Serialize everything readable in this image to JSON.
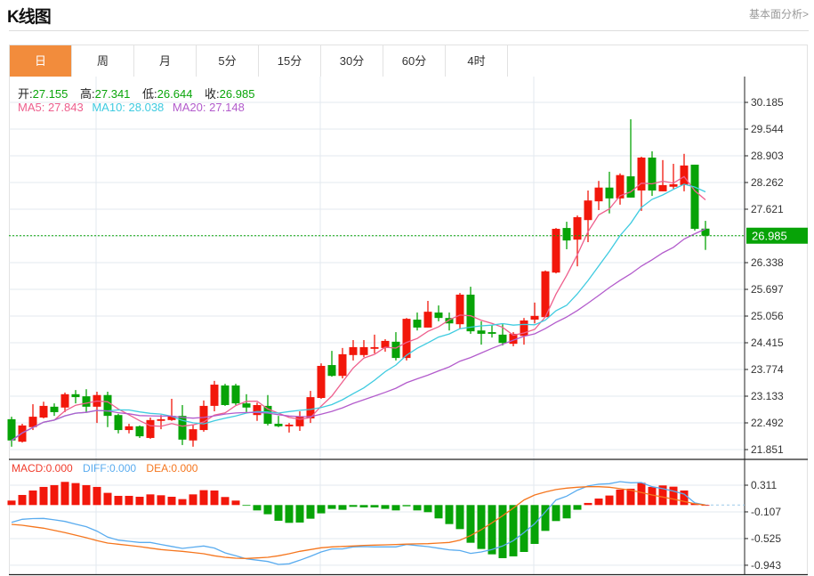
{
  "header": {
    "title": "K线图",
    "link": "基本面分析>"
  },
  "tabs": [
    {
      "label": "日",
      "active": true
    },
    {
      "label": "周"
    },
    {
      "label": "月"
    },
    {
      "label": "5分"
    },
    {
      "label": "15分"
    },
    {
      "label": "30分"
    },
    {
      "label": "60分"
    },
    {
      "label": "4时"
    }
  ],
  "ohlc": {
    "open_label": "开:",
    "open": "27.155",
    "high_label": "高:",
    "high": "27.341",
    "low_label": "低:",
    "low": "26.644",
    "close_label": "收:",
    "close": "26.985"
  },
  "ma": {
    "ma5": "MA5: 27.843",
    "ma10": "MA10: 28.038",
    "ma20": "MA20: 27.148"
  },
  "macd_legend": {
    "macd": "MACD:0.000",
    "diff": "DIFF:0.000",
    "dea": "DEA:0.000"
  },
  "colors": {
    "up": "#f2170b",
    "down": "#07a307",
    "ma5": "#ee5f8d",
    "ma10": "#3fcbe0",
    "ma20": "#b35ccc",
    "diff": "#5aacef",
    "dea": "#f5761e",
    "accent": "#f28c3c",
    "price": "#07a307"
  },
  "chart_data": {
    "type": "candlestick",
    "current_price": "26.985",
    "price_ticks": [
      "30.185",
      "29.544",
      "28.903",
      "28.262",
      "27.621",
      "26.338",
      "25.697",
      "25.056",
      "24.415",
      "23.774",
      "23.133",
      "22.492",
      "21.851"
    ],
    "price_range": [
      21.851,
      30.185
    ],
    "macd_ticks": [
      "0.311",
      "-0.107",
      "-0.525",
      "-0.943"
    ],
    "candles": [
      [
        22.58,
        22.64,
        21.92,
        22.07
      ],
      [
        22.04,
        22.47,
        22.02,
        22.43
      ],
      [
        22.39,
        22.94,
        22.32,
        22.64
      ],
      [
        22.62,
        23.0,
        22.6,
        22.9
      ],
      [
        22.88,
        22.96,
        22.66,
        22.75
      ],
      [
        22.86,
        23.22,
        22.75,
        23.18
      ],
      [
        23.18,
        23.28,
        22.96,
        23.11
      ],
      [
        23.13,
        23.3,
        22.75,
        22.88
      ],
      [
        22.88,
        23.24,
        22.49,
        23.16
      ],
      [
        23.16,
        23.24,
        22.39,
        22.66
      ],
      [
        22.68,
        22.71,
        22.24,
        22.32
      ],
      [
        22.32,
        22.47,
        22.24,
        22.41
      ],
      [
        22.41,
        22.43,
        22.13,
        22.17
      ],
      [
        22.13,
        22.62,
        22.11,
        22.56
      ],
      [
        22.54,
        22.68,
        22.34,
        22.58
      ],
      [
        22.56,
        23.07,
        22.54,
        22.66
      ],
      [
        22.66,
        22.92,
        21.96,
        22.09
      ],
      [
        22.07,
        22.45,
        21.92,
        22.34
      ],
      [
        22.32,
        23.03,
        22.28,
        22.9
      ],
      [
        22.9,
        23.5,
        22.77,
        23.41
      ],
      [
        23.39,
        23.43,
        22.9,
        22.92
      ],
      [
        23.39,
        23.43,
        22.92,
        22.96
      ],
      [
        22.96,
        23.18,
        22.75,
        22.86
      ],
      [
        22.68,
        22.98,
        22.54,
        22.92
      ],
      [
        22.9,
        23.16,
        22.43,
        22.47
      ],
      [
        22.47,
        22.66,
        22.39,
        22.41
      ],
      [
        22.41,
        22.49,
        22.26,
        22.45
      ],
      [
        22.41,
        22.77,
        22.3,
        22.64
      ],
      [
        22.6,
        23.26,
        22.49,
        23.11
      ],
      [
        23.09,
        23.92,
        23.07,
        23.86
      ],
      [
        23.88,
        24.22,
        23.6,
        23.62
      ],
      [
        23.62,
        24.29,
        23.56,
        24.14
      ],
      [
        24.12,
        24.48,
        23.99,
        24.31
      ],
      [
        24.12,
        24.48,
        24.07,
        24.31
      ],
      [
        24.27,
        24.61,
        24.16,
        24.31
      ],
      [
        24.29,
        24.5,
        24.2,
        24.46
      ],
      [
        24.44,
        24.67,
        23.99,
        24.05
      ],
      [
        24.05,
        25.01,
        23.99,
        24.99
      ],
      [
        24.97,
        25.14,
        24.71,
        24.78
      ],
      [
        24.78,
        25.42,
        24.78,
        25.16
      ],
      [
        25.14,
        25.31,
        24.93,
        25.01
      ],
      [
        25.01,
        25.14,
        24.71,
        24.88
      ],
      [
        24.86,
        25.61,
        24.76,
        25.57
      ],
      [
        25.57,
        25.76,
        24.63,
        24.69
      ],
      [
        24.71,
        24.93,
        24.37,
        24.63
      ],
      [
        24.67,
        24.84,
        24.54,
        24.63
      ],
      [
        24.61,
        24.86,
        24.35,
        24.41
      ],
      [
        24.39,
        24.67,
        24.33,
        24.63
      ],
      [
        24.58,
        25.01,
        24.37,
        24.95
      ],
      [
        24.97,
        25.38,
        24.88,
        25.06
      ],
      [
        25.03,
        26.15,
        25.03,
        26.13
      ],
      [
        26.1,
        27.17,
        26.08,
        27.15
      ],
      [
        27.17,
        27.32,
        26.66,
        26.87
      ],
      [
        26.89,
        27.47,
        26.25,
        27.43
      ],
      [
        27.36,
        28.07,
        26.83,
        27.83
      ],
      [
        27.81,
        28.3,
        27.6,
        28.14
      ],
      [
        28.14,
        28.52,
        27.52,
        27.88
      ],
      [
        27.88,
        28.48,
        27.73,
        28.44
      ],
      [
        28.41,
        29.78,
        27.9,
        27.9
      ],
      [
        28.07,
        28.88,
        27.58,
        28.86
      ],
      [
        28.86,
        29.01,
        27.94,
        28.07
      ],
      [
        28.05,
        28.8,
        28.05,
        28.2
      ],
      [
        28.16,
        28.71,
        28.11,
        28.22
      ],
      [
        28.2,
        28.95,
        28.05,
        28.67
      ],
      [
        28.69,
        28.69,
        27.11,
        27.15
      ],
      [
        27.155,
        27.341,
        26.644,
        26.985
      ]
    ],
    "macd_hist": [
      0.07,
      0.158,
      0.228,
      0.284,
      0.312,
      0.363,
      0.344,
      0.312,
      0.284,
      0.191,
      0.144,
      0.144,
      0.13,
      0.167,
      0.153,
      0.13,
      0.093,
      0.167,
      0.233,
      0.228,
      0.126,
      0.07,
      -0.005,
      -0.084,
      -0.144,
      -0.246,
      -0.279,
      -0.274,
      -0.214,
      -0.13,
      -0.06,
      -0.074,
      -0.028,
      -0.037,
      -0.037,
      -0.06,
      -0.084,
      -0.019,
      -0.084,
      -0.112,
      -0.209,
      -0.298,
      -0.377,
      -0.591,
      -0.688,
      -0.772,
      -0.832,
      -0.804,
      -0.735,
      -0.609,
      -0.405,
      -0.251,
      -0.209,
      -0.074,
      0.033,
      0.102,
      0.149,
      0.242,
      0.256,
      0.349,
      0.284,
      0.307,
      0.288,
      0.228,
      0.028,
      0.0
    ],
    "diff": [
      -0.27,
      -0.223,
      -0.212,
      -0.209,
      -0.232,
      -0.256,
      -0.298,
      -0.339,
      -0.409,
      -0.502,
      -0.549,
      -0.568,
      -0.586,
      -0.586,
      -0.618,
      -0.648,
      -0.679,
      -0.66,
      -0.642,
      -0.674,
      -0.749,
      -0.795,
      -0.842,
      -0.863,
      -0.884,
      -0.93,
      -0.921,
      -0.865,
      -0.804,
      -0.735,
      -0.688,
      -0.688,
      -0.656,
      -0.651,
      -0.656,
      -0.656,
      -0.656,
      -0.618,
      -0.635,
      -0.651,
      -0.677,
      -0.702,
      -0.712,
      -0.758,
      -0.735,
      -0.698,
      -0.642,
      -0.558,
      -0.432,
      -0.293,
      -0.107,
      0.079,
      0.14,
      0.233,
      0.298,
      0.326,
      0.335,
      0.367,
      0.349,
      0.353,
      0.288,
      0.256,
      0.219,
      0.172,
      0.033,
      0.0
    ],
    "dea": [
      -0.302,
      -0.316,
      -0.34,
      -0.363,
      -0.398,
      -0.432,
      -0.472,
      -0.512,
      -0.558,
      -0.595,
      -0.614,
      -0.632,
      -0.651,
      -0.675,
      -0.698,
      -0.712,
      -0.725,
      -0.744,
      -0.763,
      -0.795,
      -0.818,
      -0.832,
      -0.837,
      -0.828,
      -0.818,
      -0.795,
      -0.763,
      -0.725,
      -0.698,
      -0.67,
      -0.656,
      -0.649,
      -0.642,
      -0.632,
      -0.628,
      -0.623,
      -0.618,
      -0.612,
      -0.608,
      -0.605,
      -0.595,
      -0.586,
      -0.549,
      -0.479,
      -0.386,
      -0.279,
      -0.167,
      -0.047,
      0.079,
      0.158,
      0.205,
      0.242,
      0.265,
      0.279,
      0.288,
      0.288,
      0.279,
      0.256,
      0.233,
      0.195,
      0.158,
      0.126,
      0.093,
      0.056,
      0.019,
      0.0
    ]
  }
}
